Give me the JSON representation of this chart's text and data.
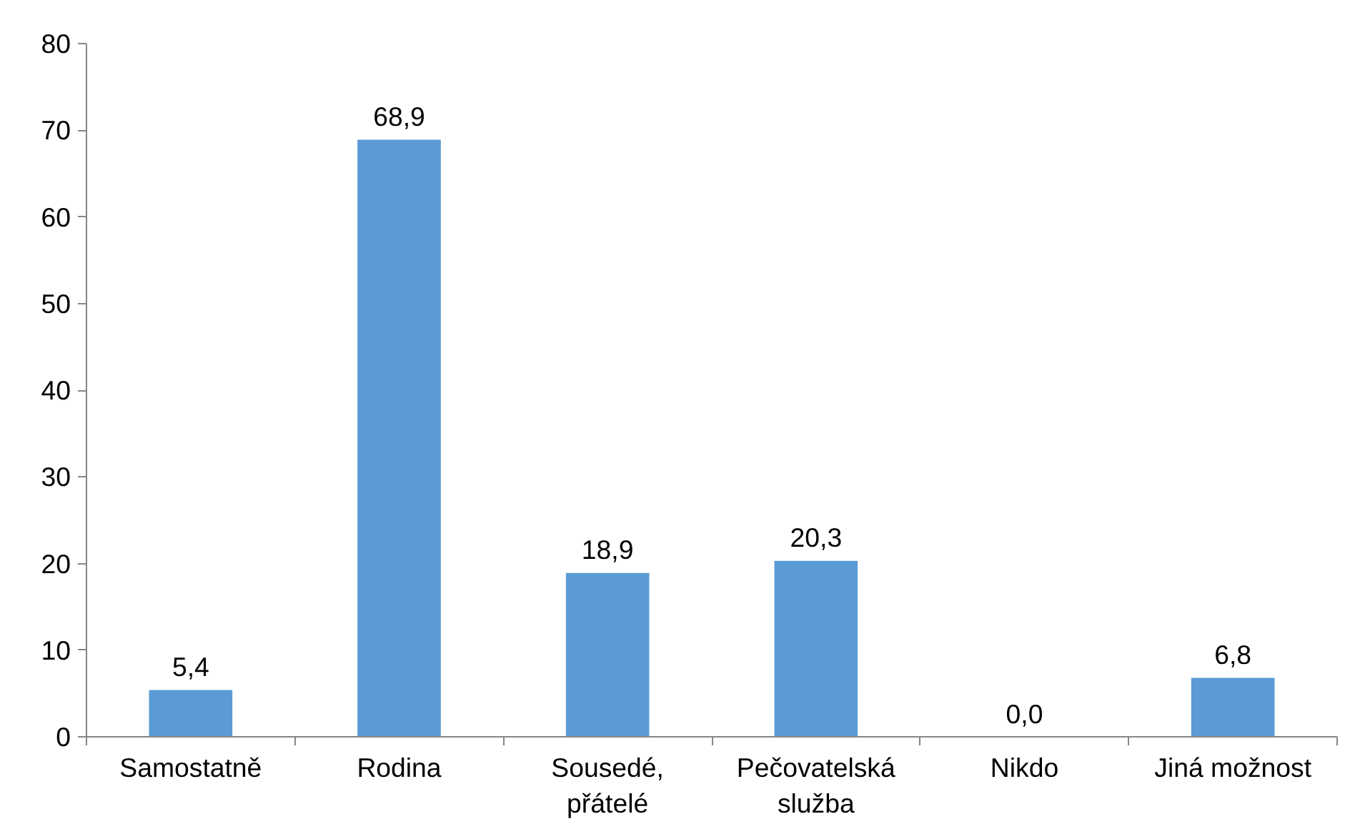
{
  "chart_data": {
    "type": "bar",
    "categories": [
      "Samostatně",
      "Rodina",
      "Sousedé, přátelé",
      "Pečovatelská služba",
      "Nikdo",
      "Jiná možnost"
    ],
    "values": [
      5.4,
      68.9,
      18.9,
      20.3,
      0.0,
      6.8
    ],
    "value_labels": [
      "5,4",
      "68,9",
      "18,9",
      "20,3",
      "0,0",
      "6,8"
    ],
    "color": "#5b9bd5",
    "ylim": [
      0,
      80
    ],
    "yticks": [
      0,
      10,
      20,
      30,
      40,
      50,
      60,
      70,
      80
    ],
    "grid": false
  }
}
